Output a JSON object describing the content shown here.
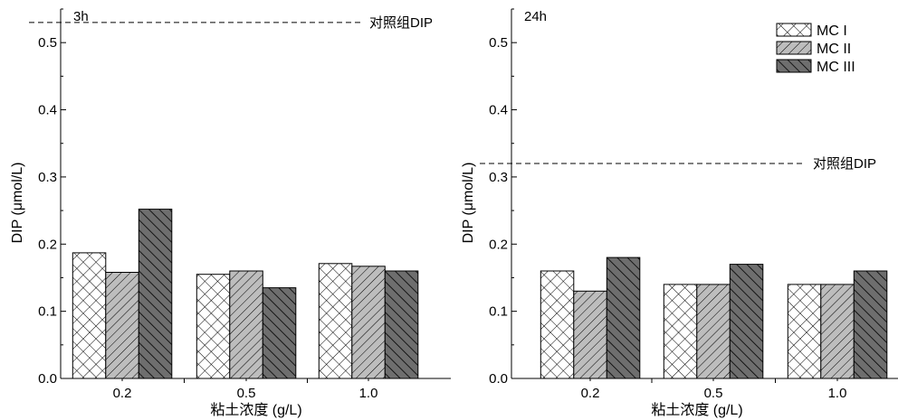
{
  "chart_data": [
    {
      "type": "bar",
      "panel_label": "3h",
      "categories": [
        "0.2",
        "0.5",
        "1.0"
      ],
      "series": [
        {
          "name": "MC I",
          "values": [
            0.187,
            0.155,
            0.171
          ]
        },
        {
          "name": "MC II",
          "values": [
            0.158,
            0.16,
            0.167
          ]
        },
        {
          "name": "MC III",
          "values": [
            0.252,
            0.135,
            0.16
          ]
        }
      ],
      "reference_line": {
        "value": 0.53,
        "label": "对照组DIP",
        "style": "dashed"
      },
      "xlabel": "粘土浓度 (g/L)",
      "ylabel": "DIP (μmol/L)",
      "ylim": [
        0,
        0.55
      ],
      "yticks": [
        "0.0",
        "0.1",
        "0.2",
        "0.3",
        "0.4",
        "0.5"
      ],
      "grid": false
    },
    {
      "type": "bar",
      "panel_label": "24h",
      "categories": [
        "0.2",
        "0.5",
        "1.0"
      ],
      "series": [
        {
          "name": "MC I",
          "values": [
            0.16,
            0.14,
            0.14
          ]
        },
        {
          "name": "MC II",
          "values": [
            0.13,
            0.14,
            0.14
          ]
        },
        {
          "name": "MC III",
          "values": [
            0.18,
            0.17,
            0.16
          ]
        }
      ],
      "reference_line": {
        "value": 0.32,
        "label": "对照组DIP",
        "style": "dashed"
      },
      "xlabel": "粘土浓度 (g/L)",
      "ylabel": "DIP (μmol/L)",
      "ylim": [
        0,
        0.55
      ],
      "yticks": [
        "0.0",
        "0.1",
        "0.2",
        "0.3",
        "0.4",
        "0.5"
      ],
      "grid": false,
      "legend": {
        "position": "top-right",
        "entries": [
          "MC I",
          "MC II",
          "MC III"
        ]
      }
    }
  ],
  "colors": {
    "axis": "#000000",
    "mc1_fill": "#ffffff",
    "mc2_fill": "#bdbdbd",
    "mc3_fill": "#6e6e6e"
  }
}
